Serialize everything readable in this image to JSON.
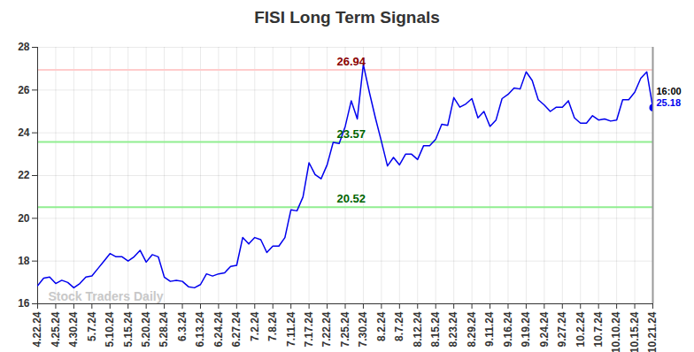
{
  "chart_data": {
    "type": "line",
    "title": "FISI Long Term Signals",
    "watermark": "Stock Traders Daily",
    "close_time": "16:00",
    "categories": [
      "4.22.24",
      null,
      null,
      "4.25.24",
      null,
      null,
      "4.30.24",
      null,
      null,
      "5.7.24",
      null,
      null,
      "5.10.24",
      null,
      null,
      "5.15.24",
      null,
      null,
      "5.20.24",
      null,
      null,
      "5.28.24",
      null,
      null,
      "6.3.24",
      null,
      null,
      "6.13.24",
      null,
      null,
      "6.24.24",
      null,
      null,
      "6.27.24",
      null,
      null,
      "7.2.24",
      null,
      null,
      "7.8.24",
      null,
      null,
      "7.11.24",
      null,
      null,
      "7.17.24",
      null,
      null,
      "7.22.24",
      null,
      null,
      "7.25.24",
      null,
      null,
      "7.30.24",
      null,
      null,
      "8.2.24",
      null,
      null,
      "8.7.24",
      null,
      null,
      "8.12.24",
      null,
      null,
      "8.15.24",
      null,
      null,
      "8.23.24",
      null,
      null,
      "8.29.24",
      null,
      null,
      "9.11.24",
      null,
      null,
      "9.16.24",
      null,
      null,
      "9.19.24",
      null,
      null,
      "9.24.24",
      null,
      null,
      "9.27.24",
      null,
      null,
      "10.2.24",
      null,
      null,
      "10.7.24",
      null,
      null,
      "10.10.24",
      null,
      null,
      "10.15.24",
      null,
      null,
      "10.21.24"
    ],
    "values": [
      16.85,
      17.2,
      17.25,
      16.95,
      17.1,
      17.0,
      16.75,
      16.95,
      17.25,
      17.3,
      17.65,
      18.0,
      18.35,
      18.2,
      18.2,
      18.0,
      18.2,
      18.5,
      17.95,
      18.3,
      18.2,
      17.25,
      17.05,
      17.1,
      17.05,
      16.8,
      16.75,
      16.9,
      17.4,
      17.3,
      17.4,
      17.45,
      17.75,
      17.8,
      19.1,
      18.8,
      19.1,
      19.0,
      18.4,
      18.7,
      18.7,
      19.1,
      20.4,
      20.35,
      21.0,
      22.6,
      22.05,
      21.85,
      22.5,
      23.55,
      23.5,
      24.3,
      25.5,
      24.65,
      27.2,
      25.9,
      24.7,
      23.6,
      22.45,
      22.85,
      22.5,
      23.0,
      23.0,
      22.75,
      23.4,
      23.4,
      23.7,
      24.4,
      24.35,
      25.65,
      25.2,
      25.35,
      25.6,
      24.7,
      25.0,
      24.3,
      24.6,
      25.6,
      25.8,
      26.1,
      26.05,
      26.85,
      26.45,
      25.55,
      25.3,
      25.0,
      25.2,
      25.2,
      25.5,
      24.7,
      24.45,
      24.45,
      24.8,
      24.6,
      24.65,
      24.55,
      24.6,
      25.55,
      25.55,
      25.9,
      26.55,
      26.85,
      25.18
    ],
    "color": "#0000ee",
    "signals": [
      {
        "value": 26.94,
        "color": "#ffcccc",
        "label_color": "#8b0000"
      },
      {
        "value": 23.57,
        "color": "#90ee90",
        "label_color": "#006400"
      },
      {
        "value": 20.52,
        "color": "#90ee90",
        "label_color": "#006400"
      }
    ],
    "ylim": [
      16,
      28
    ],
    "yticks": [
      16,
      18,
      20,
      22,
      24,
      26,
      28
    ],
    "grid": true
  }
}
